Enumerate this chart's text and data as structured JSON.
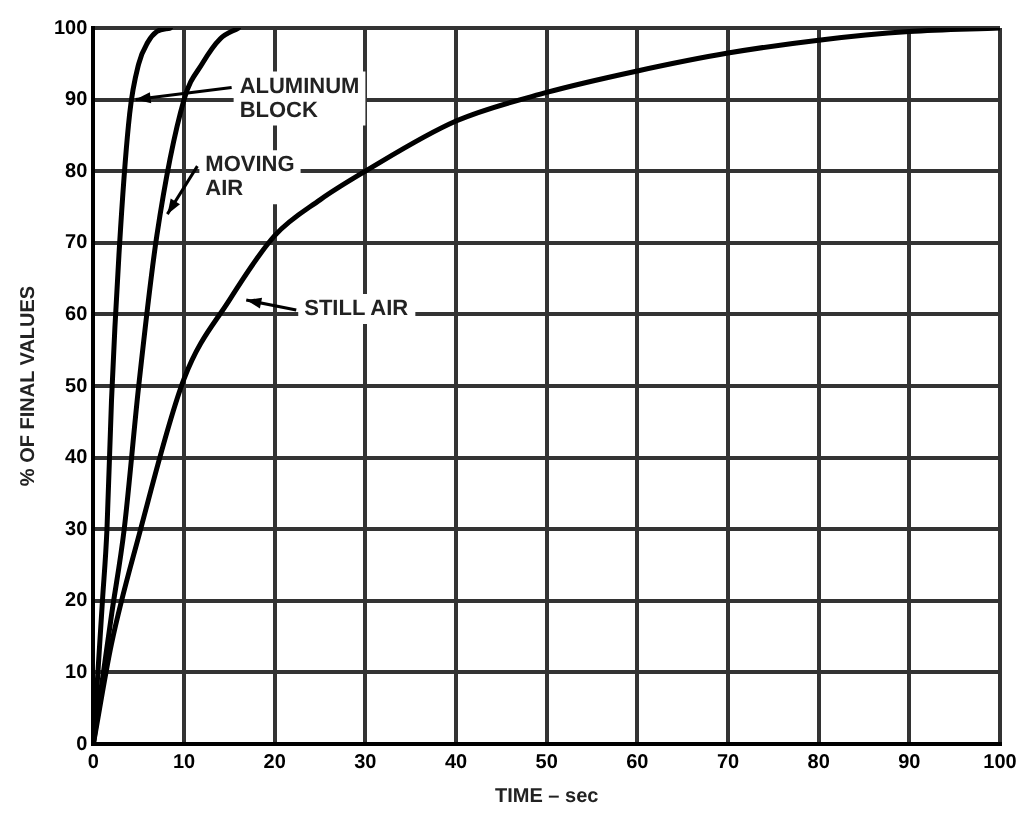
{
  "chart_data": {
    "type": "line",
    "xlabel": "TIME – sec",
    "ylabel": "% OF FINAL VALUES",
    "xlim": [
      0,
      100
    ],
    "ylim": [
      0,
      100
    ],
    "xticks": [
      0,
      10,
      20,
      30,
      40,
      50,
      60,
      70,
      80,
      90,
      100
    ],
    "yticks": [
      0,
      10,
      20,
      30,
      40,
      50,
      60,
      70,
      80,
      90,
      100
    ],
    "grid": true,
    "marker": "none",
    "line_style": "solid",
    "series": [
      {
        "color": "#000000",
        "x": [
          0,
          1,
          1.5,
          2,
          3,
          4,
          5,
          6,
          7,
          8.5
        ],
        "values": [
          0,
          20,
          30,
          48,
          72,
          88,
          95,
          98,
          99.5,
          100
        ]
      },
      {
        "color": "#000000",
        "x": [
          0,
          2,
          3.4,
          5,
          7,
          10,
          12,
          14,
          16
        ],
        "values": [
          0,
          18,
          30,
          50,
          71,
          90,
          95,
          98.5,
          100
        ]
      },
      {
        "color": "#000000",
        "x": [
          0,
          2,
          5,
          10,
          15,
          20,
          25,
          30,
          40,
          50,
          60,
          70,
          80,
          90,
          100
        ],
        "values": [
          0,
          14,
          29,
          51,
          62,
          71,
          76,
          80,
          87,
          91,
          94,
          96.5,
          98.3,
          99.5,
          100
        ]
      }
    ],
    "annotations": [
      {
        "text": "ALUMINUM\nBLOCK",
        "x": 4,
        "y": 90
      },
      {
        "text": "MOVING\nAIR",
        "x": 7.5,
        "y": 74
      },
      {
        "text": "STILL AIR",
        "x": 16.2,
        "y": 62
      }
    ]
  }
}
